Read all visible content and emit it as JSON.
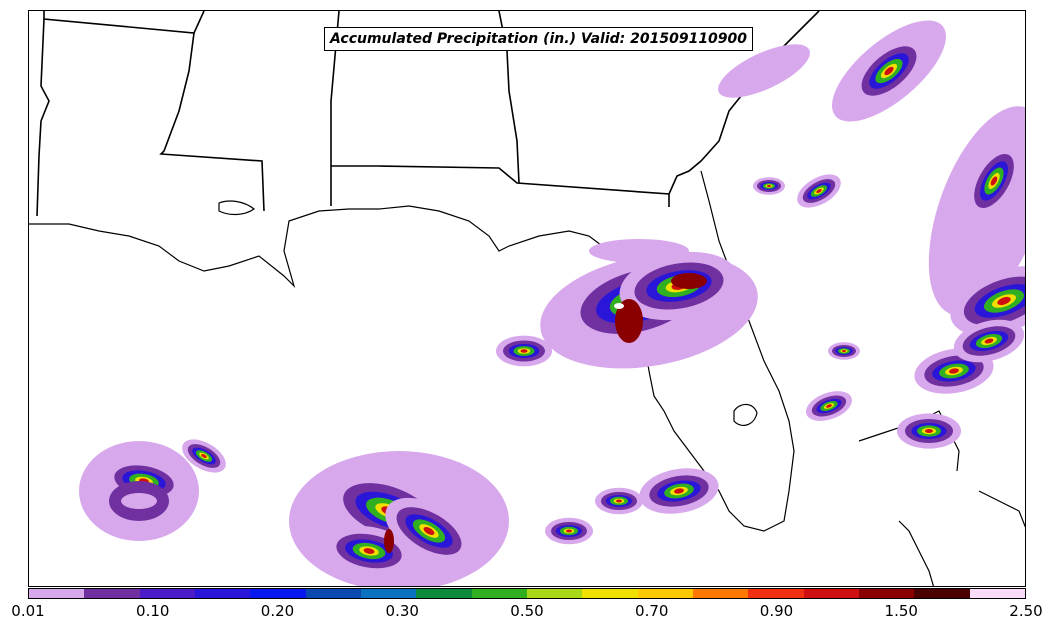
{
  "title": "Accumulated Precipitation (in.) Valid: 201509110900",
  "colorbar": {
    "colors": [
      "#d8a8ec",
      "#7030a0",
      "#4b1cc8",
      "#2a16d8",
      "#0a18f0",
      "#0a4ab0",
      "#0a70c0",
      "#0a8a3a",
      "#30b020",
      "#a8d818",
      "#f0e000",
      "#ffc800",
      "#ff7800",
      "#f03010",
      "#d01010",
      "#8a0000",
      "#4a0000",
      "#fadcfa"
    ],
    "tick_labels": [
      "0.01",
      "0.10",
      "0.20",
      "0.30",
      "0.50",
      "0.70",
      "0.90",
      "1.50",
      "2.50"
    ]
  },
  "precip_colors": {
    "light": "#d8a8ec",
    "purple": "#7030a0",
    "blue": "#2a16d8",
    "green": "#30b020",
    "yellow": "#f0e000",
    "red": "#d01010",
    "darkred": "#8a0000",
    "white": "#ffffff"
  }
}
